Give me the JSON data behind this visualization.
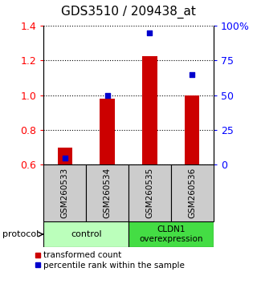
{
  "title": "GDS3510 / 209438_at",
  "samples": [
    "GSM260533",
    "GSM260534",
    "GSM260535",
    "GSM260536"
  ],
  "transformed_counts": [
    0.7,
    0.98,
    1.225,
    1.0
  ],
  "percentile_ranks": [
    5.0,
    50.0,
    95.0,
    65.0
  ],
  "ylim_left": [
    0.6,
    1.4
  ],
  "ylim_right": [
    0,
    100
  ],
  "yticks_left": [
    0.6,
    0.8,
    1.0,
    1.2,
    1.4
  ],
  "yticks_right": [
    0,
    25,
    50,
    75,
    100
  ],
  "ytick_labels_right": [
    "0",
    "25",
    "50",
    "75",
    "100%"
  ],
  "bar_color": "#cc0000",
  "dot_color": "#0000cc",
  "bar_bottom": 0.6,
  "groups": [
    {
      "label": "control",
      "color": "#bbffbb"
    },
    {
      "label": "CLDN1\noverexpression",
      "color": "#44dd44"
    }
  ],
  "legend_items": [
    {
      "color": "#cc0000",
      "label": "transformed count"
    },
    {
      "color": "#0000cc",
      "label": "percentile rank within the sample"
    }
  ],
  "protocol_label": "protocol",
  "sample_box_color": "#cccccc",
  "title_fontsize": 11,
  "tick_fontsize": 9
}
